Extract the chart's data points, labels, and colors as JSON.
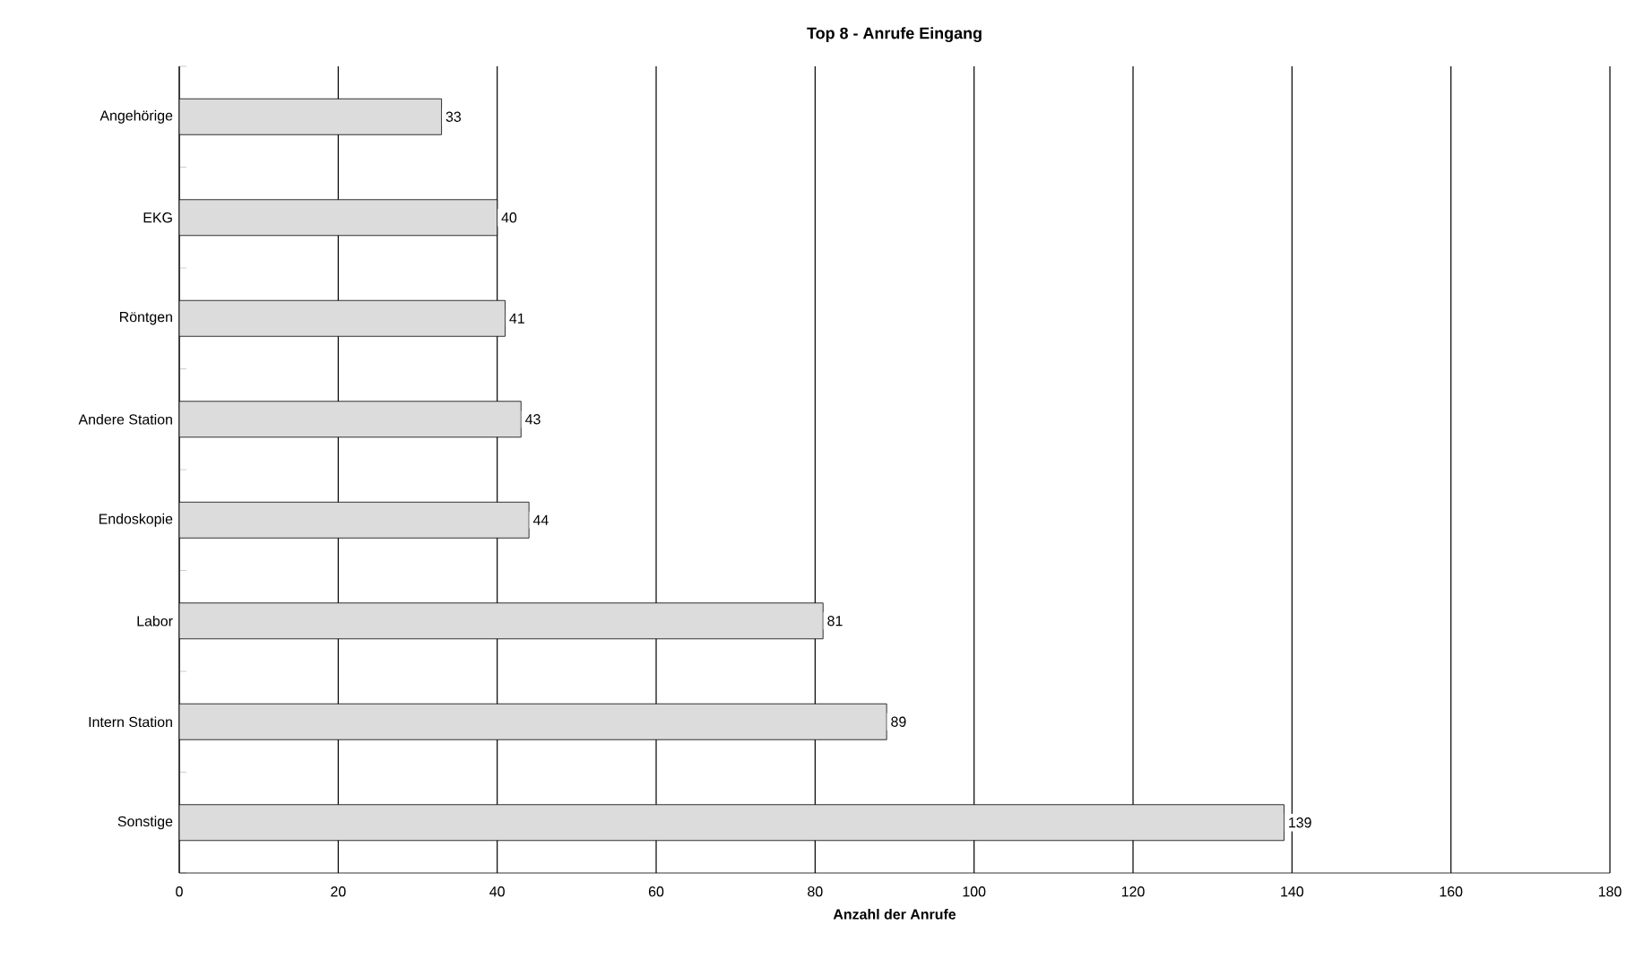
{
  "chart_data": {
    "type": "bar",
    "orientation": "horizontal",
    "title": "Top 8 - Anrufe Eingang",
    "xlabel": "Anzahl der Anrufe",
    "categories": [
      "Angehörige",
      "EKG",
      "Röntgen",
      "Andere Station",
      "Endoskopie",
      "Labor",
      "Intern Station",
      "Sonstige"
    ],
    "values": [
      33,
      40,
      41,
      43,
      44,
      81,
      89,
      139
    ],
    "color": "#dcdcdc",
    "xlim": [
      0,
      180
    ],
    "xticks": [
      0,
      20,
      40,
      60,
      80,
      100,
      120,
      140,
      160,
      180
    ],
    "grid": "x",
    "data_labels": true
  }
}
